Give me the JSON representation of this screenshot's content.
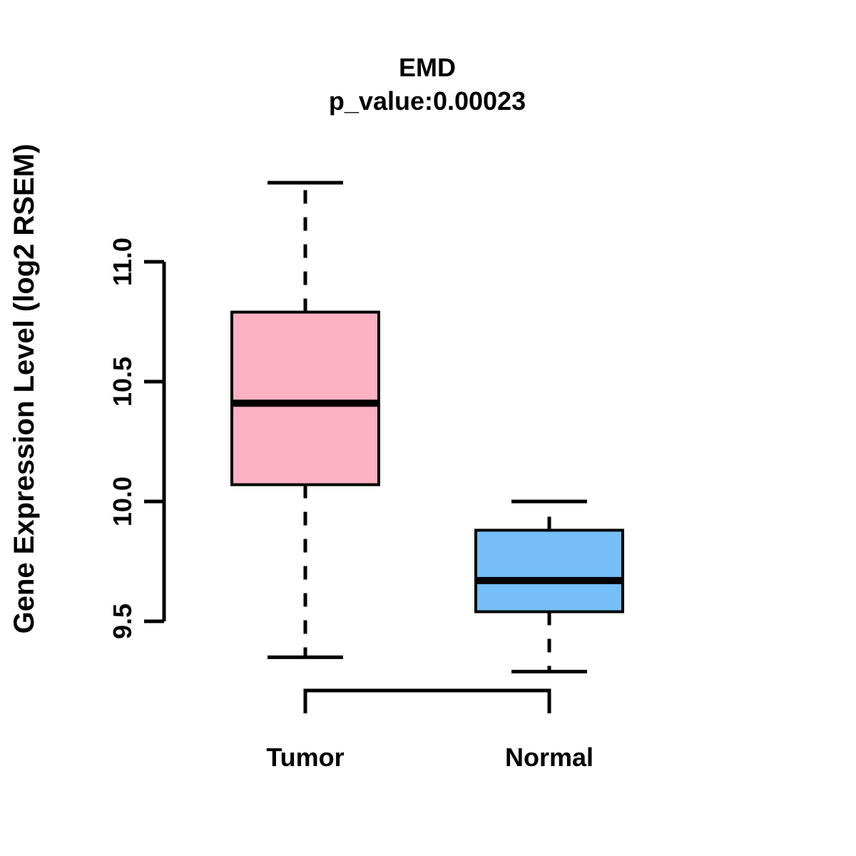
{
  "title": "EMD",
  "subtitle": "p_value:0.00023",
  "y_axis": {
    "label": "Gene Expression Level (log2 RSEM)",
    "tick_labels": [
      "9.5",
      "10.0",
      "10.5",
      "11.0"
    ]
  },
  "x_axis": {
    "labels": [
      "Tumor",
      "Normal"
    ]
  },
  "colors": {
    "tumor_fill": "#FCB1C3",
    "normal_fill": "#76BFF8",
    "line": "#000000",
    "background": "#FFFFFF"
  },
  "chart_data": {
    "type": "boxplot",
    "title": "EMD",
    "subtitle": "p_value:0.00023",
    "ylabel": "Gene Expression Level (log2 RSEM)",
    "xlabel": "",
    "ylim": [
      9.5,
      11.0
    ],
    "yticks": [
      9.5,
      10.0,
      10.5,
      11.0
    ],
    "ytick_labels": [
      "9.5",
      "10.0",
      "10.5",
      "11.0"
    ],
    "grid": false,
    "legend": "none",
    "categories": [
      "Tumor",
      "Normal"
    ],
    "series": [
      {
        "name": "Tumor",
        "lower_whisker": 9.35,
        "q1": 10.07,
        "median": 10.41,
        "q3": 10.79,
        "upper_whisker": 11.33,
        "fill": "#FCB1C3"
      },
      {
        "name": "Normal",
        "lower_whisker": 9.29,
        "q1": 9.54,
        "median": 9.67,
        "q3": 9.88,
        "upper_whisker": 10.0,
        "fill": "#76BFF8"
      }
    ]
  }
}
